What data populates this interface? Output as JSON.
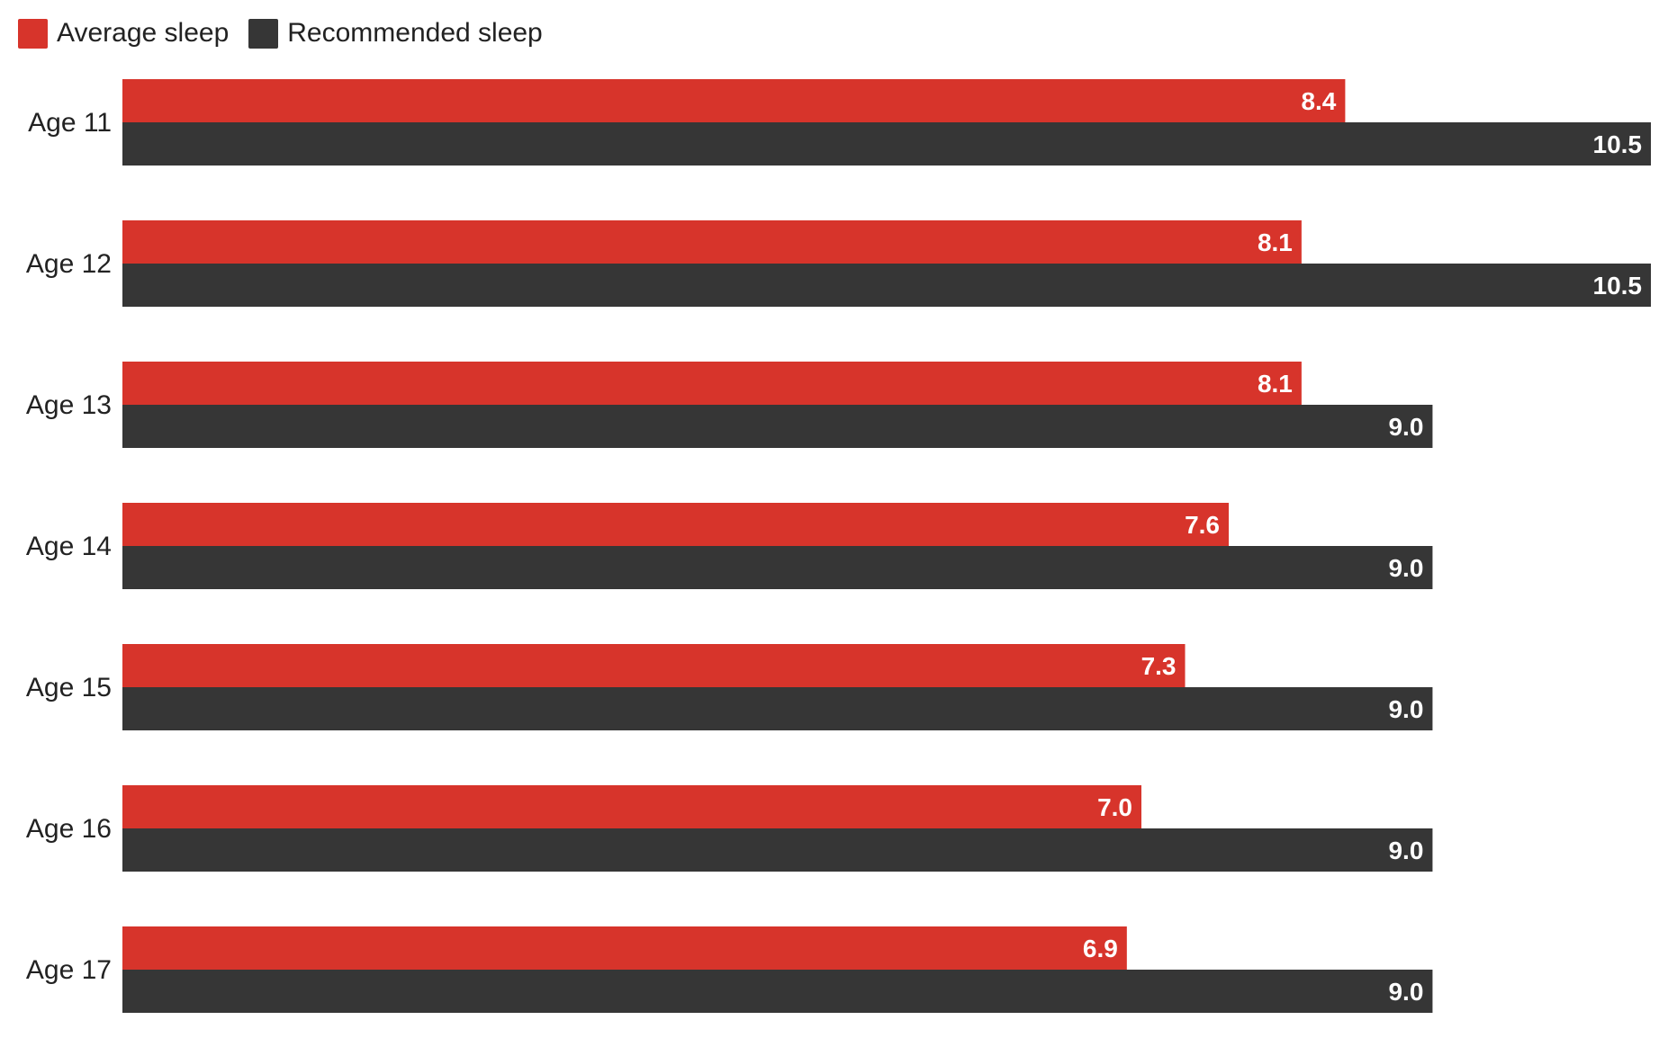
{
  "chart_data": {
    "type": "bar",
    "orientation": "horizontal",
    "categories": [
      "Age 11",
      "Age 12",
      "Age 13",
      "Age 14",
      "Age 15",
      "Age 16",
      "Age 17"
    ],
    "series": [
      {
        "name": "Average sleep",
        "color": "#d7342b",
        "values": [
          8.4,
          8.1,
          8.1,
          7.6,
          7.3,
          7.0,
          6.9
        ],
        "labels": [
          "8.4",
          "8.1",
          "8.1",
          "7.6",
          "7.3",
          "7.0",
          "6.9"
        ]
      },
      {
        "name": "Recommended sleep",
        "color": "#363636",
        "values": [
          10.5,
          10.5,
          9.0,
          9.0,
          9.0,
          9.0,
          9.0
        ],
        "labels": [
          "10.5",
          "10.5",
          "9.0",
          "9.0",
          "9.0",
          "9.0",
          "9.0"
        ]
      }
    ],
    "xlim": [
      0,
      10.5
    ],
    "grid": false,
    "legend_position": "top-left",
    "axis_label_color": "#222222",
    "value_label_color": "#ffffff"
  }
}
